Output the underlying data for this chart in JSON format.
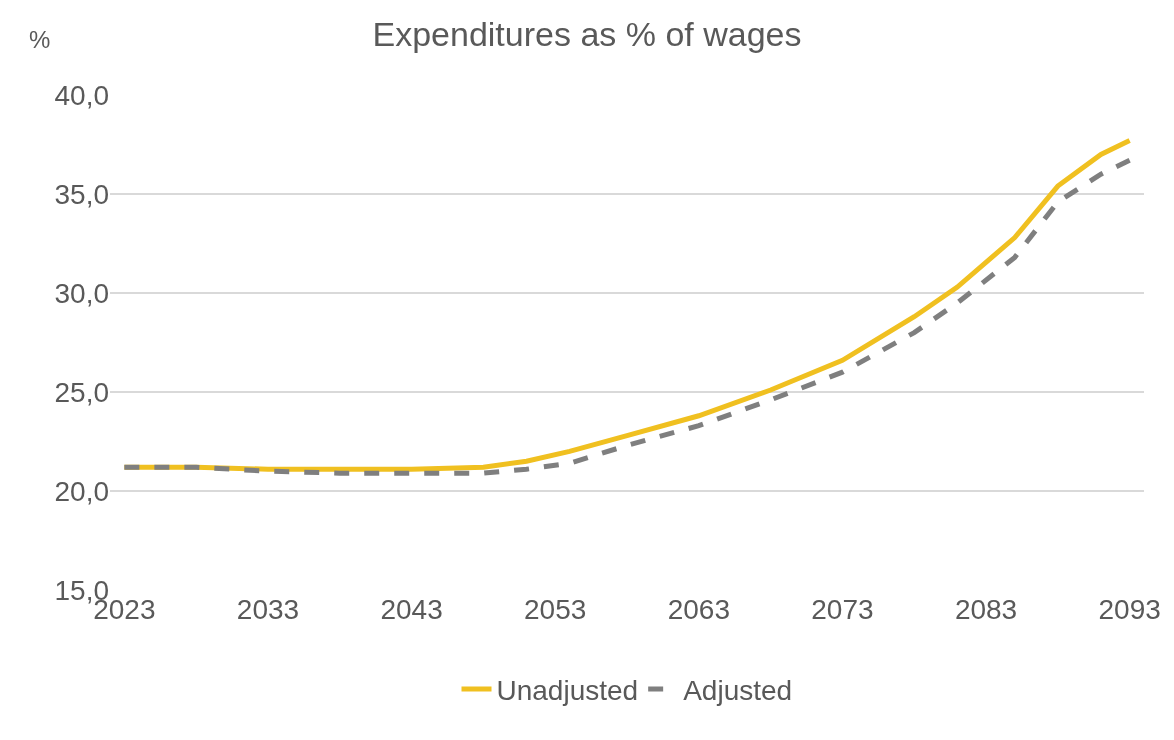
{
  "chart_data": {
    "type": "line",
    "title": "Expenditures as % of wages",
    "ylabel": "%",
    "x": [
      2023,
      2028,
      2033,
      2038,
      2043,
      2048,
      2051,
      2054,
      2058,
      2063,
      2068,
      2073,
      2078,
      2081,
      2085,
      2088,
      2091,
      2093
    ],
    "series": [
      {
        "name": "Unadjusted",
        "color": "#f0c020",
        "line_style": "solid",
        "values": [
          21.2,
          21.2,
          21.1,
          21.1,
          21.1,
          21.2,
          21.5,
          22.0,
          22.8,
          23.8,
          25.1,
          26.6,
          28.8,
          30.3,
          32.8,
          35.4,
          37.0,
          37.7
        ]
      },
      {
        "name": "Adjusted",
        "color": "#7f7f7f",
        "line_style": "dashed",
        "values": [
          21.2,
          21.2,
          21.0,
          20.9,
          20.9,
          20.9,
          21.1,
          21.4,
          22.3,
          23.3,
          24.6,
          26.0,
          28.0,
          29.5,
          31.8,
          34.6,
          36.0,
          36.7
        ]
      }
    ],
    "xlim": [
      2022,
      2094
    ],
    "xticks": [
      2023,
      2033,
      2043,
      2053,
      2063,
      2073,
      2083,
      2093
    ],
    "ylim": [
      15,
      40
    ],
    "yticks": [
      {
        "value": 15,
        "label": "15,0"
      },
      {
        "value": 20,
        "label": "20,0"
      },
      {
        "value": 25,
        "label": "25,0"
      },
      {
        "value": 30,
        "label": "30,0"
      },
      {
        "value": 35,
        "label": "35,0"
      },
      {
        "value": 40,
        "label": "40,0"
      }
    ],
    "grid": "y",
    "legend": "bottom",
    "marker": "none"
  }
}
